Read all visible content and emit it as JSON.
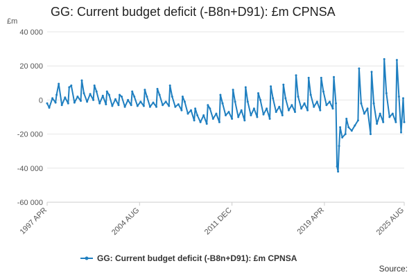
{
  "chart_data": {
    "type": "line",
    "title": "GG: Current budget deficit (-B8n+D91): £m CPNSA",
    "ylabel": "£m",
    "ylim": [
      -60000,
      40000
    ],
    "yticks": [
      40000,
      20000,
      0,
      -20000,
      -40000,
      -60000
    ],
    "ytick_labels": [
      "40 000",
      "20 000",
      "0",
      "-20 000",
      "-40 000",
      "-60 000"
    ],
    "xlim": [
      "1997-04",
      "2025-08"
    ],
    "xticks": [
      "1997-04",
      "2004-08",
      "2011-12",
      "2019-04",
      "2025-08"
    ],
    "xtick_labels": [
      "1997 APR",
      "2004 AUG",
      "2011 DEC",
      "2019 APR",
      "2025 AUG"
    ],
    "grid": "horizontal",
    "legend_position": "bottom",
    "series": [
      {
        "name": "GG: Current budget deficit (-B8n+D91): £m CPNSA",
        "color": "#1f7fc0",
        "points": [
          [
            "1997-04",
            -2000
          ],
          [
            "1997-06",
            -4500
          ],
          [
            "1997-09",
            1000
          ],
          [
            "1997-12",
            -1500
          ],
          [
            "1998-01",
            3000
          ],
          [
            "1998-03",
            9500
          ],
          [
            "1998-06",
            -3000
          ],
          [
            "1998-09",
            1500
          ],
          [
            "1998-12",
            -2000
          ],
          [
            "1999-01",
            7500
          ],
          [
            "1999-03",
            8500
          ],
          [
            "1999-06",
            -1500
          ],
          [
            "1999-09",
            2000
          ],
          [
            "1999-12",
            -500
          ],
          [
            "2000-01",
            11500
          ],
          [
            "2000-03",
            4000
          ],
          [
            "2000-06",
            -1000
          ],
          [
            "2000-09",
            3500
          ],
          [
            "2000-12",
            0
          ],
          [
            "2001-01",
            8500
          ],
          [
            "2001-03",
            5000
          ],
          [
            "2001-06",
            -2000
          ],
          [
            "2001-09",
            2500
          ],
          [
            "2001-12",
            -2500
          ],
          [
            "2002-01",
            5000
          ],
          [
            "2002-03",
            3000
          ],
          [
            "2002-06",
            -3500
          ],
          [
            "2002-09",
            500
          ],
          [
            "2002-12",
            -3000
          ],
          [
            "2003-01",
            3000
          ],
          [
            "2003-03",
            2000
          ],
          [
            "2003-06",
            -4000
          ],
          [
            "2003-09",
            0
          ],
          [
            "2003-12",
            -3000
          ],
          [
            "2004-01",
            5000
          ],
          [
            "2004-03",
            2000
          ],
          [
            "2004-06",
            -3500
          ],
          [
            "2004-09",
            -1000
          ],
          [
            "2004-12",
            -3500
          ],
          [
            "2005-01",
            6000
          ],
          [
            "2005-03",
            2000
          ],
          [
            "2005-06",
            -4000
          ],
          [
            "2005-09",
            -1500
          ],
          [
            "2005-12",
            -4000
          ],
          [
            "2006-01",
            6500
          ],
          [
            "2006-03",
            3000
          ],
          [
            "2006-06",
            -3000
          ],
          [
            "2006-09",
            -1000
          ],
          [
            "2006-12",
            -3500
          ],
          [
            "2007-01",
            8500
          ],
          [
            "2007-03",
            2000
          ],
          [
            "2007-06",
            -4000
          ],
          [
            "2007-09",
            -2500
          ],
          [
            "2007-12",
            -6000
          ],
          [
            "2008-01",
            2000
          ],
          [
            "2008-03",
            -1000
          ],
          [
            "2008-06",
            -8000
          ],
          [
            "2008-09",
            -6000
          ],
          [
            "2008-12",
            -12000
          ],
          [
            "2009-01",
            -5000
          ],
          [
            "2009-03",
            -9000
          ],
          [
            "2009-06",
            -13000
          ],
          [
            "2009-09",
            -9000
          ],
          [
            "2009-12",
            -14000
          ],
          [
            "2010-01",
            -3000
          ],
          [
            "2010-03",
            -5000
          ],
          [
            "2010-06",
            -11000
          ],
          [
            "2010-09",
            -8000
          ],
          [
            "2010-12",
            -13000
          ],
          [
            "2011-01",
            3000
          ],
          [
            "2011-03",
            -2000
          ],
          [
            "2011-06",
            -9000
          ],
          [
            "2011-09",
            -7000
          ],
          [
            "2011-12",
            -11000
          ],
          [
            "2012-01",
            6000
          ],
          [
            "2012-03",
            -1000
          ],
          [
            "2012-06",
            -10000
          ],
          [
            "2012-09",
            -6000
          ],
          [
            "2012-12",
            -12000
          ],
          [
            "2013-01",
            7500
          ],
          [
            "2013-03",
            -1000
          ],
          [
            "2013-06",
            -9000
          ],
          [
            "2013-09",
            -5000
          ],
          [
            "2013-12",
            -10000
          ],
          [
            "2014-01",
            4000
          ],
          [
            "2014-03",
            0
          ],
          [
            "2014-06",
            -8500
          ],
          [
            "2014-09",
            -5000
          ],
          [
            "2014-12",
            -11000
          ],
          [
            "2015-01",
            8000
          ],
          [
            "2015-03",
            1000
          ],
          [
            "2015-06",
            -7000
          ],
          [
            "2015-09",
            -4000
          ],
          [
            "2015-12",
            -9000
          ],
          [
            "2016-01",
            9000
          ],
          [
            "2016-03",
            1000
          ],
          [
            "2016-06",
            -6000
          ],
          [
            "2016-09",
            -3000
          ],
          [
            "2016-12",
            -7000
          ],
          [
            "2017-01",
            14500
          ],
          [
            "2017-03",
            2000
          ],
          [
            "2017-06",
            -5000
          ],
          [
            "2017-09",
            -2000
          ],
          [
            "2017-12",
            -6000
          ],
          [
            "2018-01",
            13000
          ],
          [
            "2018-03",
            3000
          ],
          [
            "2018-06",
            -4000
          ],
          [
            "2018-09",
            -1000
          ],
          [
            "2018-12",
            -6000
          ],
          [
            "2019-01",
            13000
          ],
          [
            "2019-03",
            5000
          ],
          [
            "2019-06",
            -3000
          ],
          [
            "2019-09",
            -1000
          ],
          [
            "2019-12",
            -5000
          ],
          [
            "2020-01",
            13500
          ],
          [
            "2020-03",
            -2000
          ],
          [
            "2020-04",
            -39000
          ],
          [
            "2020-05",
            -42000
          ],
          [
            "2020-06",
            -27000
          ],
          [
            "2020-07",
            -16000
          ],
          [
            "2020-09",
            -22000
          ],
          [
            "2020-12",
            -20000
          ],
          [
            "2021-01",
            -11000
          ],
          [
            "2021-03",
            -16000
          ],
          [
            "2021-06",
            -18000
          ],
          [
            "2021-09",
            -15000
          ],
          [
            "2021-12",
            -12000
          ],
          [
            "2022-01",
            18500
          ],
          [
            "2022-03",
            -2000
          ],
          [
            "2022-06",
            -8000
          ],
          [
            "2022-09",
            -5000
          ],
          [
            "2022-12",
            -20000
          ],
          [
            "2023-01",
            16500
          ],
          [
            "2023-03",
            -2000
          ],
          [
            "2023-06",
            -14000
          ],
          [
            "2023-09",
            -8000
          ],
          [
            "2023-12",
            -13000
          ],
          [
            "2024-01",
            24000
          ],
          [
            "2024-03",
            4000
          ],
          [
            "2024-06",
            -10000
          ],
          [
            "2024-09",
            -8000
          ],
          [
            "2024-12",
            -13000
          ],
          [
            "2025-01",
            23500
          ],
          [
            "2025-03",
            2000
          ],
          [
            "2025-05",
            -19000
          ],
          [
            "2025-07",
            1000
          ],
          [
            "2025-08",
            -13000
          ]
        ]
      }
    ]
  },
  "legend": {
    "label": "GG: Current budget deficit (-B8n+D91): £m CPNSA"
  },
  "source_label": "Source:",
  "colors": {
    "series": "#1f7fc0",
    "grid": "#e6e6e6",
    "axis": "#cccccc"
  }
}
